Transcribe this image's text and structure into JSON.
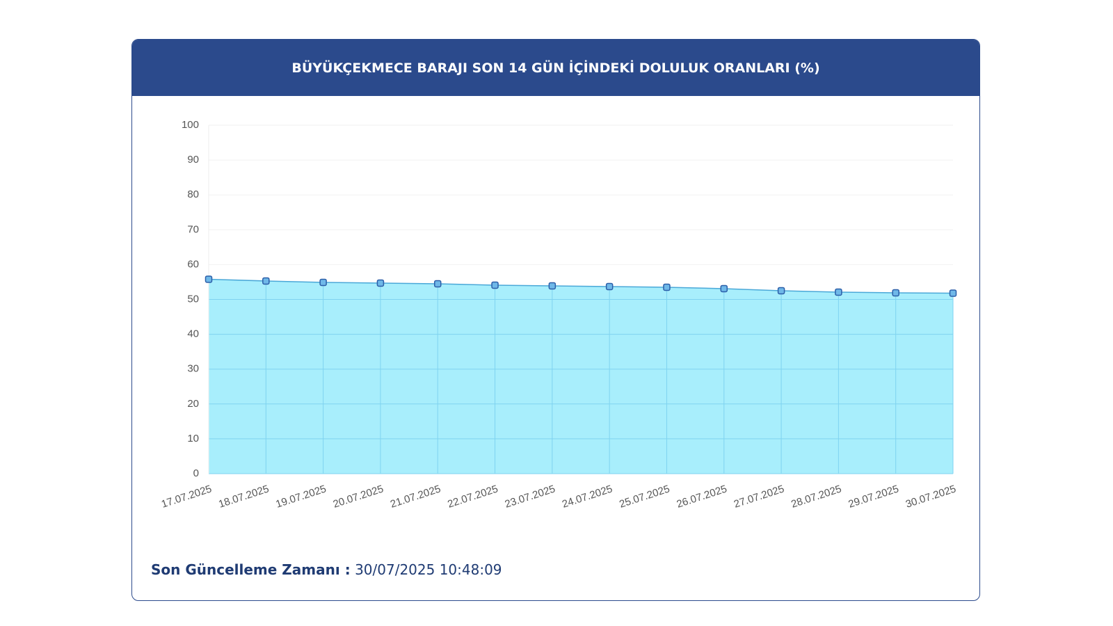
{
  "header": {
    "title": "BÜYÜKÇEKMECE BARAJI SON 14 GÜN İÇİNDEKİ DOLULUK ORANLARI (%)"
  },
  "chart_data": {
    "type": "area",
    "categories": [
      "17.07.2025",
      "18.07.2025",
      "19.07.2025",
      "20.07.2025",
      "21.07.2025",
      "22.07.2025",
      "23.07.2025",
      "24.07.2025",
      "25.07.2025",
      "26.07.2025",
      "27.07.2025",
      "28.07.2025",
      "29.07.2025",
      "30.07.2025"
    ],
    "values": [
      55.8,
      55.3,
      54.9,
      54.7,
      54.5,
      54.1,
      53.9,
      53.7,
      53.5,
      53.1,
      52.5,
      52.1,
      51.9,
      51.8
    ],
    "color": "#4aa8d8",
    "fill": "#a8eefc",
    "ylim": [
      0,
      100
    ],
    "yticks": [
      0,
      10,
      20,
      30,
      40,
      50,
      60,
      70,
      80,
      90,
      100
    ],
    "grid": true
  },
  "footer": {
    "label": "Son Güncelleme Zamanı :",
    "value": "30/07/2025 10:48:09"
  }
}
